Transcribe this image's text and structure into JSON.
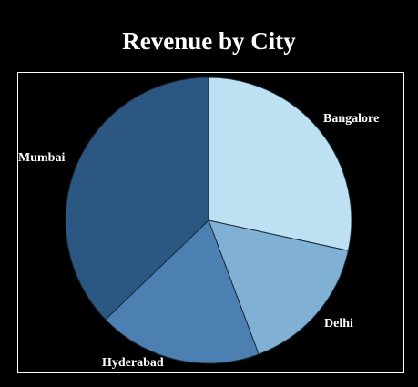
{
  "chart_data": {
    "type": "pie",
    "title": "Revenue by City",
    "categories": [
      "Bangalore",
      "Delhi",
      "Hyderabad",
      "Mumbai"
    ],
    "values": [
      28.4,
      15.9,
      18.5,
      37.2
    ],
    "unit": "%",
    "colors": [
      "#bde0f2",
      "#80b1d5",
      "#4c80b2",
      "#2b5782"
    ],
    "start_angle_deg": 0,
    "direction": "clockwise",
    "slice_border": "#1a2a3a",
    "legend": "none",
    "labels": "outside"
  }
}
